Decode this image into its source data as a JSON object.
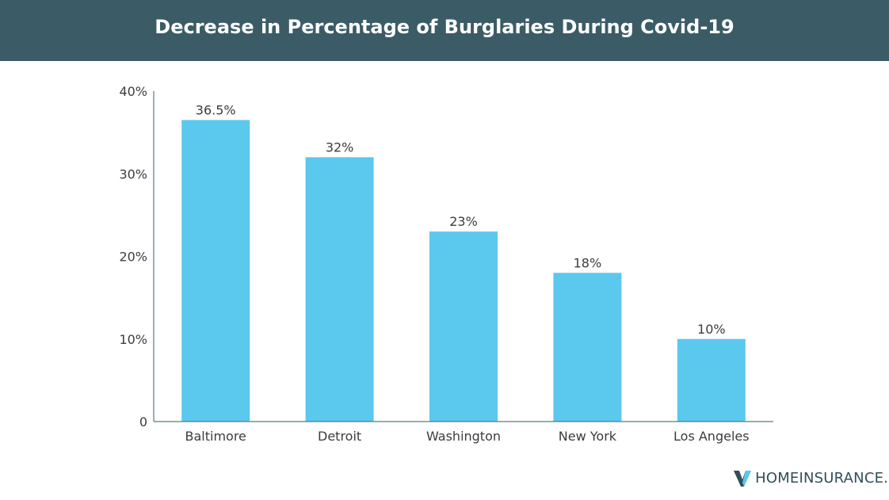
{
  "header": {
    "title": "Decrease in Percentage of Burglaries During Covid-19"
  },
  "brand": {
    "name": "HOMEINSURANCE.CO"
  },
  "colors": {
    "header_bg": "#3b5c66",
    "bar": "#5bc8ed",
    "text": "#3c3c3c",
    "axis": "#5b7a84"
  },
  "chart_data": {
    "type": "bar",
    "title": "Decrease in Percentage of Burglaries During Covid-19",
    "xlabel": "",
    "ylabel": "",
    "categories": [
      "Baltimore",
      "Detroit",
      "Washington",
      "New York",
      "Los Angeles"
    ],
    "values": [
      36.5,
      32,
      23,
      18,
      10
    ],
    "value_labels": [
      "36.5%",
      "32%",
      "23%",
      "18%",
      "10%"
    ],
    "ylim": [
      0,
      40
    ],
    "yticks": [
      0,
      10,
      20,
      30,
      40
    ],
    "ytick_labels": [
      "0",
      "10%",
      "20%",
      "30%",
      "40%"
    ],
    "grid": false,
    "legend": "none"
  }
}
